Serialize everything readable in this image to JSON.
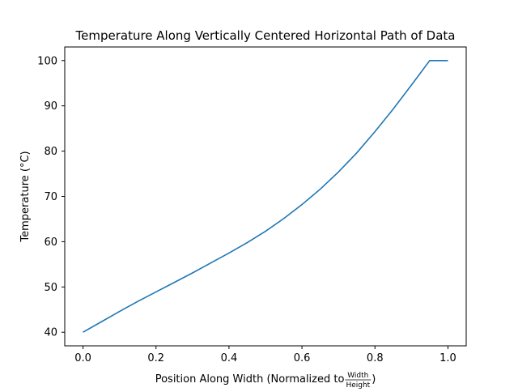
{
  "chart_data": {
    "type": "line",
    "title": "Temperature Along Vertically Centered Horizontal Path of Data",
    "xlabel": {
      "prefix": "Position Along Width (Normalized to ",
      "frac_numerator": "Width",
      "frac_denominator": "Height",
      "suffix": ")"
    },
    "ylabel": "Temperature (°C)",
    "xlim": [
      -0.05,
      1.05
    ],
    "ylim": [
      37,
      103
    ],
    "xticks": [
      0.0,
      0.2,
      0.4,
      0.6,
      0.8,
      1.0
    ],
    "xtick_labels": [
      "0.0",
      "0.2",
      "0.4",
      "0.6",
      "0.8",
      "1.0"
    ],
    "yticks": [
      40,
      50,
      60,
      70,
      80,
      90,
      100
    ],
    "ytick_labels": [
      "40",
      "50",
      "60",
      "70",
      "80",
      "90",
      "100"
    ],
    "grid": false,
    "series": [
      {
        "color": "#1f77b4",
        "x": [
          0.0,
          0.05,
          0.1,
          0.15,
          0.2,
          0.25,
          0.3,
          0.35,
          0.4,
          0.45,
          0.5,
          0.55,
          0.6,
          0.65,
          0.7,
          0.75,
          0.8,
          0.85,
          0.9,
          0.95,
          1.0
        ],
        "y": [
          40.0,
          42.3,
          44.6,
          46.8,
          48.9,
          51.0,
          53.1,
          55.3,
          57.5,
          59.8,
          62.3,
          65.1,
          68.2,
          71.6,
          75.4,
          79.6,
          84.3,
          89.3,
          94.6,
          100.0,
          100.0
        ]
      }
    ]
  }
}
